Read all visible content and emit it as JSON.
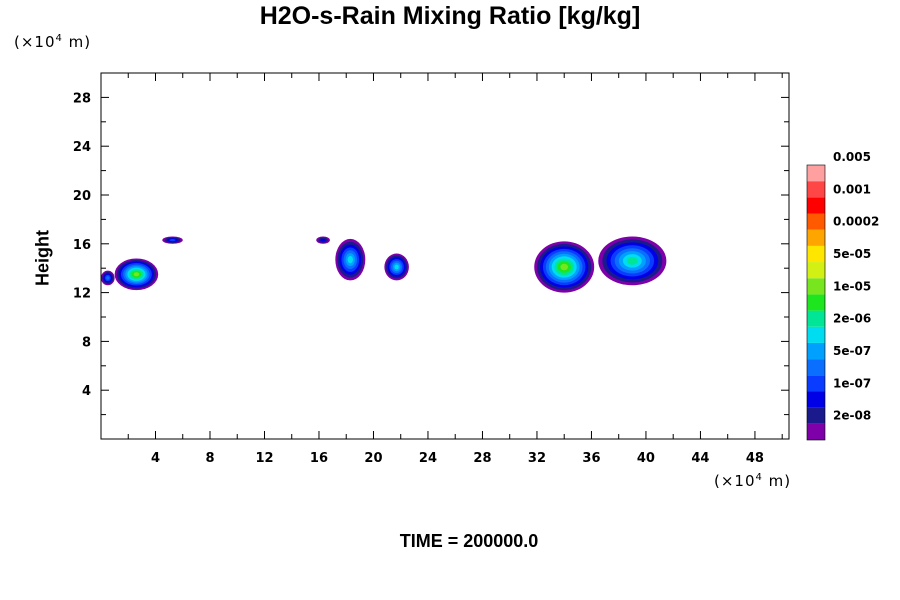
{
  "chart_data": {
    "type": "heatmap",
    "title": "H2O-s-Rain Mixing Ratio [kg/kg]",
    "xlabel": "",
    "ylabel": "Height",
    "x_unit_parts": [
      "(×10",
      "4",
      " m)"
    ],
    "y_unit_parts": [
      "(×10",
      "4",
      " m)"
    ],
    "footer": "TIME = 200000.0",
    "xlim": [
      0,
      50.5
    ],
    "ylim": [
      0,
      30
    ],
    "x_ticks": [
      4,
      8,
      12,
      16,
      20,
      24,
      28,
      32,
      36,
      40,
      44,
      48
    ],
    "y_ticks": [
      4,
      8,
      12,
      16,
      20,
      24,
      28
    ],
    "colorbar": {
      "colors": [
        "#7d00a8",
        "#1a1a8c",
        "#0000e6",
        "#0a3cff",
        "#0a6eff",
        "#00a0ff",
        "#00dcf0",
        "#00e696",
        "#1ee61e",
        "#78e61e",
        "#d2f014",
        "#ffe600",
        "#ffa500",
        "#ff5a00",
        "#ff0000",
        "#ff4646",
        "#ffa0a0"
      ],
      "labels": [
        "2e-08",
        "1e-07",
        "5e-07",
        "2e-06",
        "1e-05",
        "5e-05",
        "0.0002",
        "0.001",
        "0.005"
      ]
    },
    "cloud_regions": [
      {
        "x": [
          0.0,
          1.0
        ],
        "y": [
          12.6,
          13.8
        ],
        "peak_level": 4
      },
      {
        "x": [
          1.0,
          4.2
        ],
        "y": [
          12.2,
          14.8
        ],
        "peak_level": 9
      },
      {
        "x": [
          4.5,
          6.0
        ],
        "y": [
          16.0,
          16.6
        ],
        "peak_level": 3
      },
      {
        "x": [
          15.8,
          16.8
        ],
        "y": [
          16.0,
          16.6
        ],
        "peak_level": 2
      },
      {
        "x": [
          17.2,
          19.4
        ],
        "y": [
          13.0,
          16.4
        ],
        "peak_level": 6
      },
      {
        "x": [
          20.8,
          22.6
        ],
        "y": [
          13.0,
          15.2
        ],
        "peak_level": 6
      },
      {
        "x": [
          31.8,
          36.2
        ],
        "y": [
          12.0,
          16.2
        ],
        "peak_level": 9
      },
      {
        "x": [
          36.5,
          41.5
        ],
        "y": [
          12.6,
          16.6
        ],
        "peak_level": 7
      }
    ]
  }
}
